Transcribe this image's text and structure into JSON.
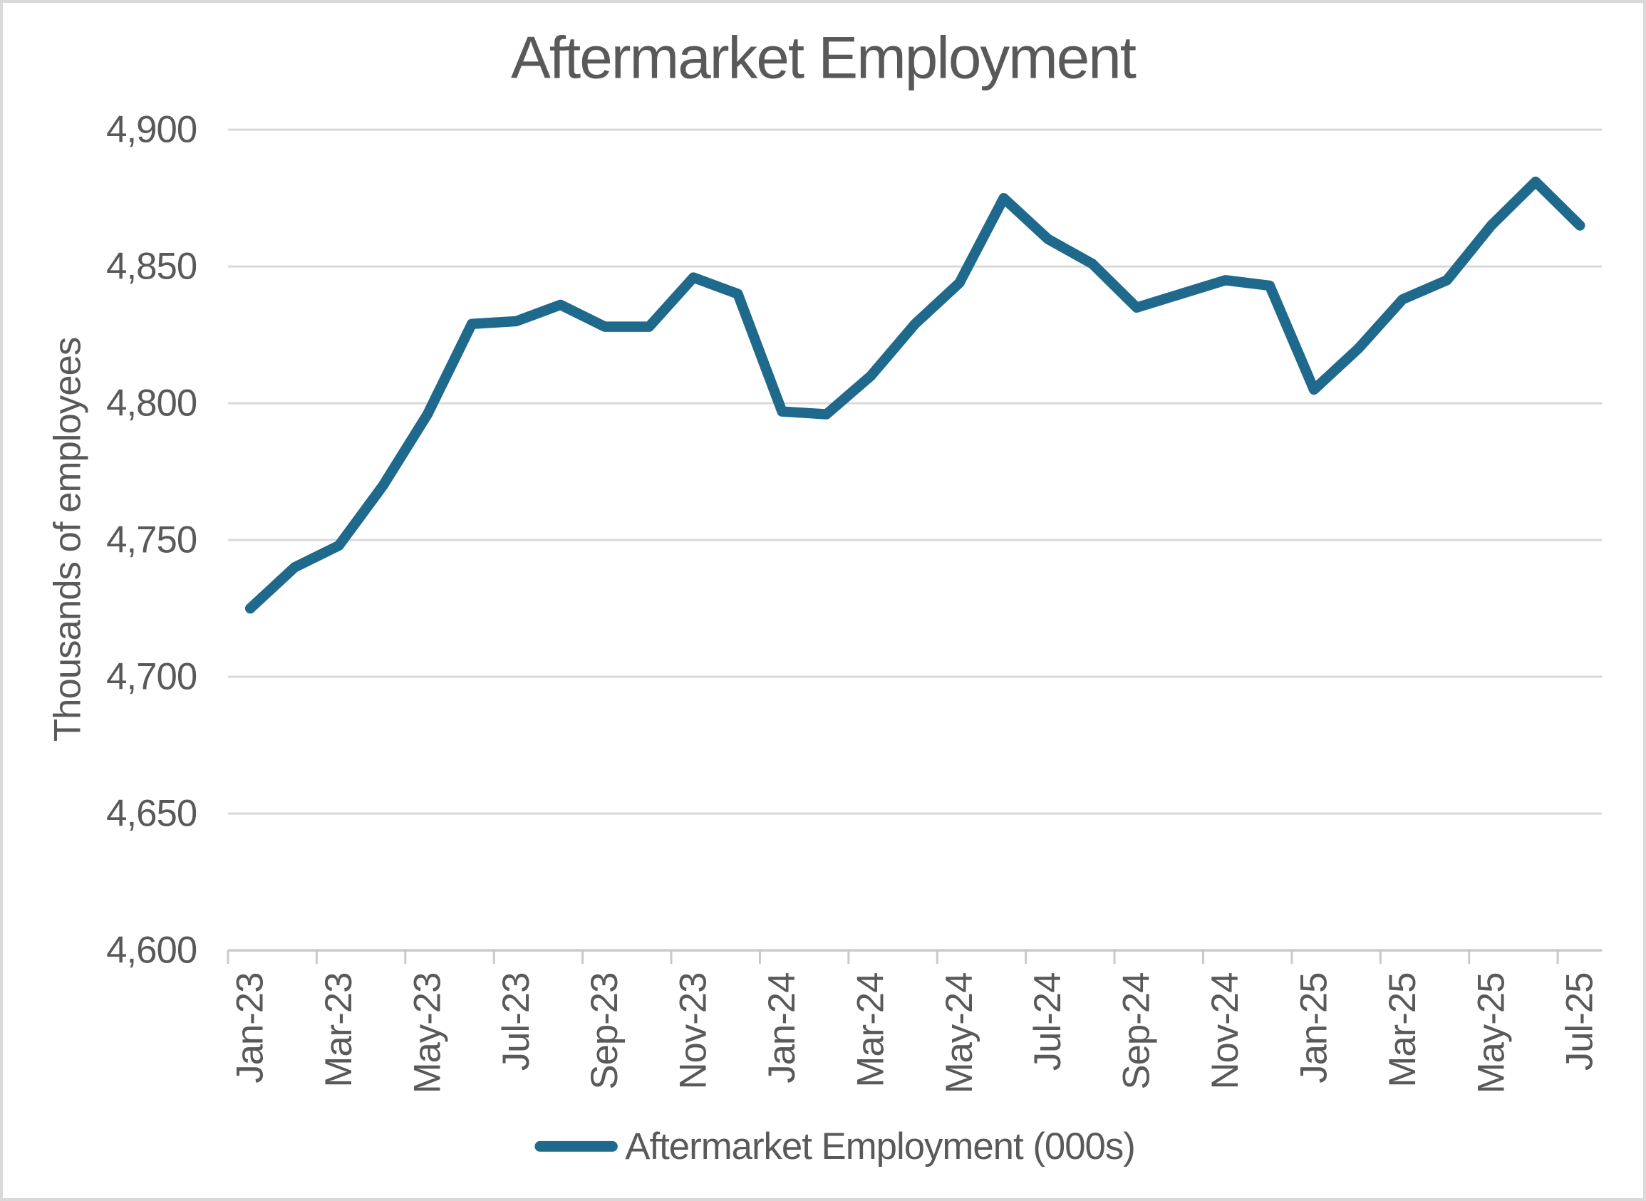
{
  "title": "Aftermarket Employment",
  "y_axis": {
    "title": "Thousands of employees"
  },
  "legend": {
    "label": "Aftermarket Employment (000s)"
  },
  "colors": {
    "line": "#1E698C",
    "text": "#595959",
    "grid": "#D9D9D9",
    "axis": "#C9C9C9",
    "frame_border": "#D9D9D9",
    "background": "#FFFFFF"
  },
  "chart_data": {
    "type": "line",
    "title": "Aftermarket Employment",
    "ylabel": "Thousands of employees",
    "xlabel": "",
    "ylim": [
      4600,
      4900
    ],
    "y_tick_step": 50,
    "y_tick_labels": [
      "4,600",
      "4,650",
      "4,700",
      "4,750",
      "4,800",
      "4,850",
      "4,900"
    ],
    "grid": true,
    "legend_position": "bottom",
    "x": [
      "Jan-23",
      "Feb-23",
      "Mar-23",
      "Apr-23",
      "May-23",
      "Jun-23",
      "Jul-23",
      "Aug-23",
      "Sep-23",
      "Oct-23",
      "Nov-23",
      "Dec-23",
      "Jan-24",
      "Feb-24",
      "Mar-24",
      "Apr-24",
      "May-24",
      "Jun-24",
      "Jul-24",
      "Aug-24",
      "Sep-24",
      "Oct-24",
      "Nov-24",
      "Dec-24",
      "Jan-25",
      "Feb-25",
      "Mar-25",
      "Apr-25",
      "May-25",
      "Jun-25",
      "Jul-25"
    ],
    "x_tick_labels": [
      "Jan-23",
      "Mar-23",
      "May-23",
      "Jul-23",
      "Sep-23",
      "Nov-23",
      "Jan-24",
      "Mar-24",
      "May-24",
      "Jul-24",
      "Sep-24",
      "Nov-24",
      "Jan-25",
      "Mar-25",
      "May-25",
      "Jul-25"
    ],
    "series": [
      {
        "name": "Aftermarket Employment (000s)",
        "values": [
          4725,
          4740,
          4748,
          4770,
          4796,
          4829,
          4830,
          4836,
          4828,
          4828,
          4846,
          4840,
          4797,
          4796,
          4810,
          4829,
          4844,
          4875,
          4860,
          4851,
          4835,
          4840,
          4845,
          4843,
          4805,
          4820,
          4838,
          4845,
          4865,
          4881,
          4865
        ]
      }
    ]
  }
}
